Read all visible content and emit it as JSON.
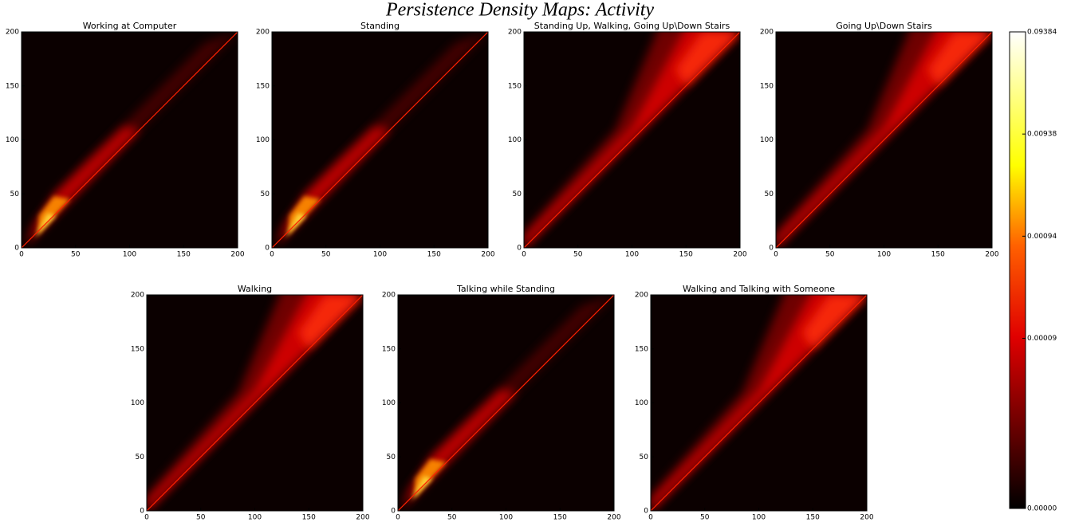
{
  "chart_data": {
    "type": "heatmap",
    "title": "Persistence Density Maps: Activity",
    "panels": [
      {
        "title": "Working at Computer",
        "xlim": [
          0,
          200
        ],
        "ylim": [
          0,
          200
        ],
        "xticks": [
          0,
          50,
          100,
          150,
          200
        ],
        "yticks": [
          0,
          50,
          100,
          150,
          200
        ]
      },
      {
        "title": "Standing",
        "xlim": [
          0,
          200
        ],
        "ylim": [
          0,
          200
        ],
        "xticks": [
          0,
          50,
          100,
          150,
          200
        ],
        "yticks": [
          0,
          50,
          100,
          150,
          200
        ]
      },
      {
        "title": "Standing Up, Walking, Going Up\\Down Stairs",
        "xlim": [
          0,
          200
        ],
        "ylim": [
          0,
          200
        ],
        "xticks": [
          0,
          50,
          100,
          150,
          200
        ],
        "yticks": [
          0,
          50,
          100,
          150,
          200
        ]
      },
      {
        "title": "Going Up\\Down Stairs",
        "xlim": [
          0,
          200
        ],
        "ylim": [
          0,
          200
        ],
        "xticks": [
          0,
          50,
          100,
          150,
          200
        ],
        "yticks": [
          0,
          50,
          100,
          150,
          200
        ]
      },
      {
        "title": "Walking",
        "xlim": [
          0,
          200
        ],
        "ylim": [
          0,
          200
        ],
        "xticks": [
          0,
          50,
          100,
          150,
          200
        ],
        "yticks": [
          0,
          50,
          100,
          150,
          200
        ]
      },
      {
        "title": "Talking while Standing",
        "xlim": [
          0,
          200
        ],
        "ylim": [
          0,
          200
        ],
        "xticks": [
          0,
          50,
          100,
          150,
          200
        ],
        "yticks": [
          0,
          50,
          100,
          150,
          200
        ]
      },
      {
        "title": "Walking and Talking with Someone",
        "xlim": [
          0,
          200
        ],
        "ylim": [
          0,
          200
        ],
        "xticks": [
          0,
          50,
          100,
          150,
          200
        ],
        "yticks": [
          0,
          50,
          100,
          150,
          200
        ]
      }
    ],
    "colorbar": {
      "lim": [
        0,
        0.09384
      ],
      "scale": "symlog",
      "ticks": [
        {
          "value": 0,
          "label": "0.00000"
        },
        {
          "value": 9.384e-05,
          "label": "0.00009"
        },
        {
          "value": 0.0009384,
          "label": "0.00094"
        },
        {
          "value": 0.009384,
          "label": "0.00938"
        },
        {
          "value": 0.09384,
          "label": "0.09384"
        }
      ]
    }
  }
}
